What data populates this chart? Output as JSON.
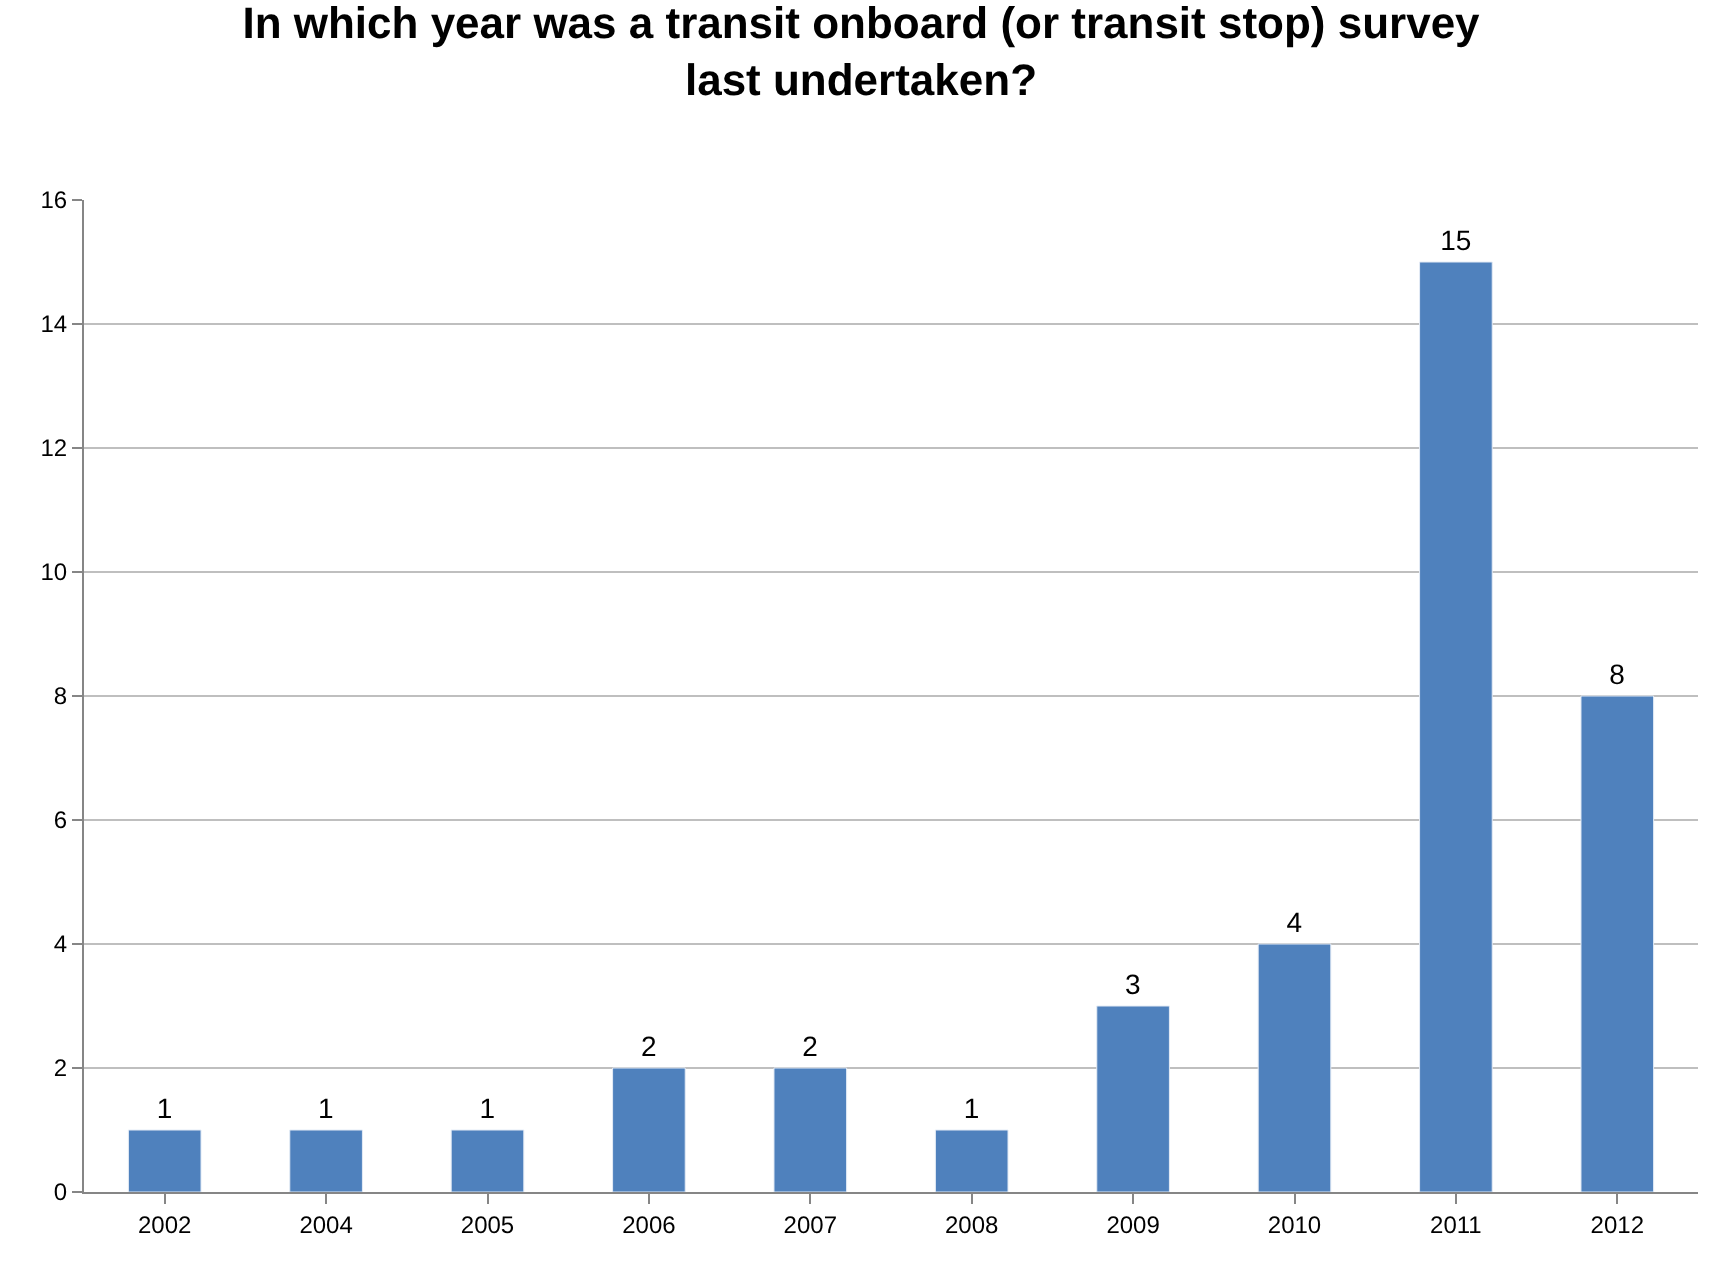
{
  "chart_data": {
    "type": "bar",
    "title": "In which year was a transit onboard (or transit stop) survey last undertaken?",
    "categories": [
      "2002",
      "2004",
      "2005",
      "2006",
      "2007",
      "2008",
      "2009",
      "2010",
      "2011",
      "2012"
    ],
    "values": [
      1,
      1,
      1,
      2,
      2,
      1,
      3,
      4,
      15,
      8
    ],
    "color": "#4f81bd",
    "ylim": [
      0,
      16
    ],
    "yticks": [
      0,
      2,
      4,
      6,
      8,
      10,
      12,
      14,
      16
    ],
    "grid": "y",
    "data_labels": true,
    "legend": false
  }
}
